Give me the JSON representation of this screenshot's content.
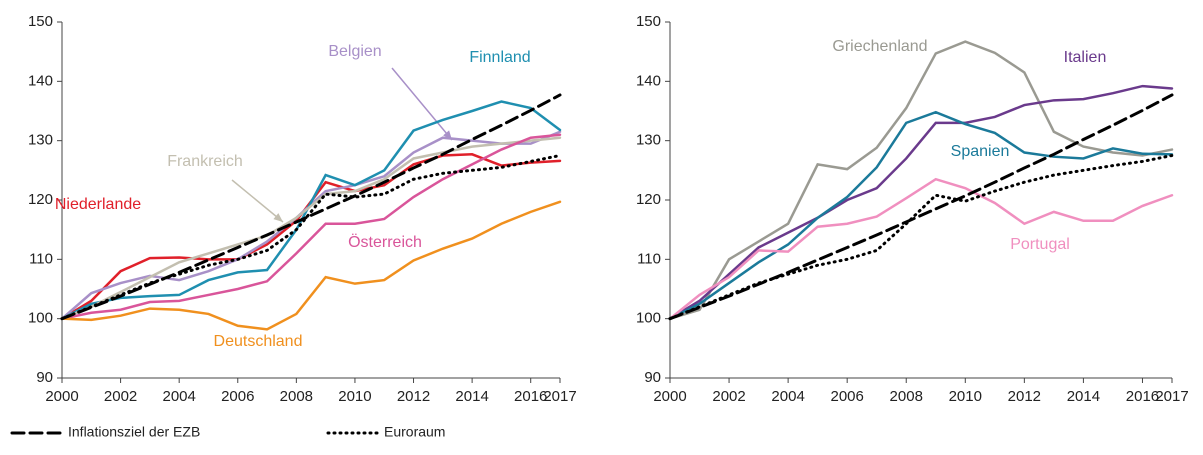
{
  "chart_data": [
    {
      "type": "line",
      "x": [
        2000,
        2001,
        2002,
        2003,
        2004,
        2005,
        2006,
        2007,
        2008,
        2009,
        2010,
        2011,
        2012,
        2013,
        2014,
        2015,
        2016,
        2017
      ],
      "xlim": [
        2000,
        2017
      ],
      "xticks": [
        2000,
        2002,
        2004,
        2006,
        2008,
        2010,
        2012,
        2014,
        2016,
        2017
      ],
      "ylim": [
        90,
        150
      ],
      "yticks": [
        90,
        100,
        110,
        120,
        130,
        140,
        150
      ],
      "series": [
        {
          "name": "Niederlande",
          "color": "#e0202a",
          "values": [
            100,
            103,
            108,
            110.2,
            110.3,
            110,
            110,
            112.5,
            116.5,
            123,
            121.5,
            122.5,
            126,
            127.5,
            127.7,
            125.8,
            126.3,
            126.6
          ]
        },
        {
          "name": "Belgien",
          "color": "#a890c8",
          "values": [
            100,
            104.3,
            106,
            107.2,
            106.5,
            108,
            110,
            113,
            117,
            121.5,
            122.5,
            124,
            128,
            130.5,
            130,
            129.5,
            129.5,
            131.5
          ]
        },
        {
          "name": "Finnland",
          "color": "#1f8fb0",
          "values": [
            100,
            102.5,
            103.5,
            103.8,
            104,
            106.5,
            107.8,
            108.2,
            115,
            124.2,
            122.5,
            125,
            131.7,
            133.5,
            135,
            136.6,
            135.5,
            131.8
          ]
        },
        {
          "name": "Frankreich",
          "color": "#c3bfb0",
          "values": [
            100,
            102,
            104.5,
            107,
            109.5,
            111,
            112.5,
            114,
            117,
            121,
            121.5,
            123.5,
            127,
            128,
            129,
            129.5,
            130,
            130.5
          ]
        },
        {
          "name": "Österreich",
          "color": "#d9559a",
          "values": [
            100,
            101,
            101.5,
            102.8,
            103,
            104,
            105,
            106.3,
            111,
            116,
            116,
            116.8,
            120.5,
            123.5,
            126,
            128.5,
            130.5,
            131
          ]
        },
        {
          "name": "Deutschland",
          "color": "#f0901e",
          "values": [
            100,
            99.8,
            100.5,
            101.7,
            101.5,
            100.8,
            98.8,
            98.2,
            100.8,
            107,
            105.9,
            106.5,
            109.8,
            111.8,
            113.5,
            116,
            118,
            119.7
          ]
        },
        {
          "color": "#000000",
          "style": "dashed",
          "values": [
            100,
            101.9,
            103.8,
            105.8,
            107.8,
            109.9,
            112,
            114.1,
            116.3,
            118.5,
            120.7,
            123,
            125.4,
            127.7,
            130.2,
            132.6,
            135.1,
            137.7
          ]
        },
        {
          "color": "#000000",
          "style": "dotted",
          "values": [
            100,
            102,
            104,
            106,
            107.5,
            109,
            110,
            111.5,
            115,
            121,
            120.5,
            121,
            123.5,
            124.5,
            125,
            125.5,
            126.5,
            127.5
          ]
        }
      ]
    },
    {
      "type": "line",
      "x": [
        2000,
        2001,
        2002,
        2003,
        2004,
        2005,
        2006,
        2007,
        2008,
        2009,
        2010,
        2011,
        2012,
        2013,
        2014,
        2015,
        2016,
        2017
      ],
      "xlim": [
        2000,
        2017
      ],
      "xticks": [
        2000,
        2002,
        2004,
        2006,
        2008,
        2010,
        2012,
        2014,
        2016,
        2017
      ],
      "ylim": [
        90,
        150
      ],
      "yticks": [
        90,
        100,
        110,
        120,
        130,
        140,
        150
      ],
      "series": [
        {
          "name": "Griechenland",
          "color": "#9a9a92",
          "values": [
            100,
            101.5,
            110,
            113,
            116,
            126,
            125.2,
            128.8,
            135.5,
            144.7,
            146.7,
            144.8,
            141.5,
            131.5,
            129,
            128,
            127.5,
            128.5
          ]
        },
        {
          "name": "Italien",
          "color": "#6a3a8c",
          "values": [
            100,
            103,
            107.5,
            112,
            114.5,
            117,
            120,
            122,
            127,
            133,
            133,
            134,
            136,
            136.8,
            137,
            138,
            139.2,
            138.8
          ]
        },
        {
          "name": "Spanien",
          "color": "#1b7a9a",
          "values": [
            100,
            102.5,
            106,
            109.5,
            112.5,
            117,
            120.5,
            125.5,
            133,
            134.8,
            132.8,
            131.3,
            128,
            127.3,
            127,
            128.7,
            127.8,
            127.7
          ]
        },
        {
          "name": "Portugal",
          "color": "#f08fbf",
          "values": [
            100,
            104,
            107,
            111.5,
            111.3,
            115.5,
            116,
            117.2,
            120.3,
            123.5,
            122,
            119.5,
            116,
            118,
            116.5,
            116.5,
            119,
            120.8
          ]
        },
        {
          "color": "#000000",
          "style": "dashed",
          "values": [
            100,
            101.9,
            103.8,
            105.8,
            107.8,
            109.9,
            112,
            114.1,
            116.3,
            118.5,
            120.7,
            123,
            125.4,
            127.7,
            130.2,
            132.6,
            135.1,
            137.7
          ]
        },
        {
          "color": "#000000",
          "style": "dotted",
          "values": [
            100,
            102,
            104,
            106,
            107.5,
            109,
            110,
            111.5,
            116,
            120.8,
            119.8,
            121.5,
            123,
            124.2,
            125,
            125.8,
            126.5,
            127.5
          ]
        }
      ]
    }
  ],
  "legend": [
    {
      "name": "Inflationsziel der EZB",
      "style": "dashed"
    },
    {
      "name": "Euroraum",
      "style": "dotted"
    }
  ]
}
